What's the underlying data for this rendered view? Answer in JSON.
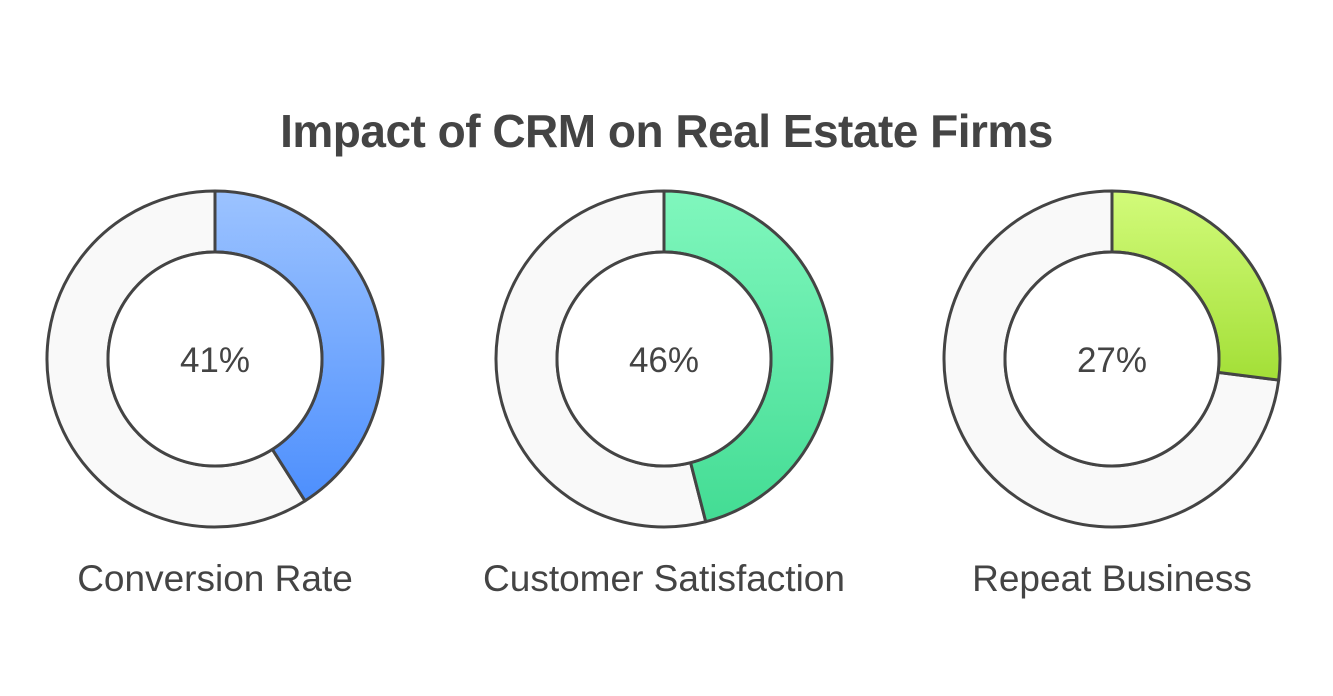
{
  "title": "Impact of CRM on Real Estate Firms",
  "chart_data": {
    "type": "pie",
    "variant": "donut",
    "title": "Impact of CRM on Real Estate Firms",
    "unit": "%",
    "items": [
      {
        "label": "Conversion Rate",
        "value": 41,
        "display": "41%",
        "color_top": "#9cc3ff",
        "color_bottom": "#4d8ffd"
      },
      {
        "label": "Customer Satisfaction",
        "value": 46,
        "display": "46%",
        "color_top": "#80f7bd",
        "color_bottom": "#43dc94"
      },
      {
        "label": "Repeat Business",
        "value": 27,
        "display": "27%",
        "color_top": "#d2fb7a",
        "color_bottom": "#a3df37"
      }
    ],
    "remainder_color": "#f9f9f9",
    "stroke_color": "#444444"
  }
}
